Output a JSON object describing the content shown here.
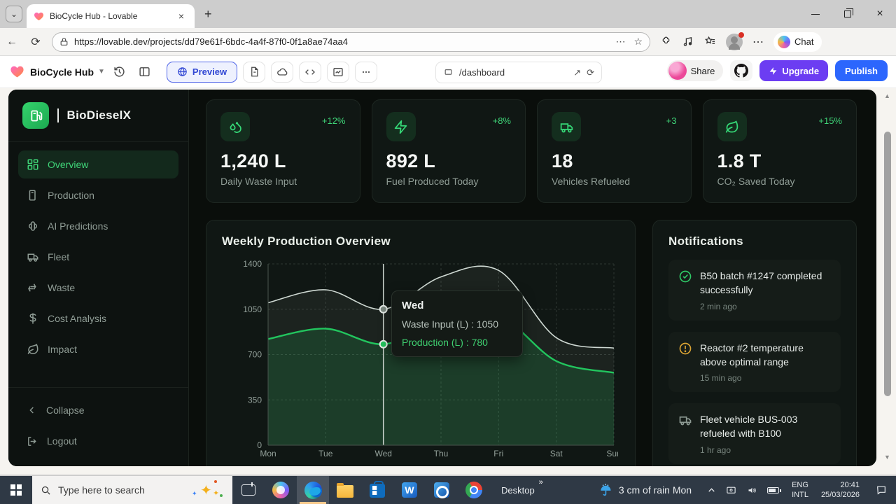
{
  "browser": {
    "tab_title": "BioCycle Hub - Lovable",
    "url": "https://lovable.dev/projects/dd79e61f-6bdc-4a4f-87f0-0f1a8ae74aa4",
    "chat_label": "Chat"
  },
  "lovable": {
    "project_name": "BioCycle Hub",
    "preview_label": "Preview",
    "path_value": "/dashboard",
    "share_label": "Share",
    "upgrade_label": "Upgrade",
    "publish_label": "Publish"
  },
  "sidebar": {
    "brand": "BioDieselX",
    "items": [
      {
        "label": "Overview",
        "icon": "dashboard-grid",
        "active": true
      },
      {
        "label": "Production",
        "icon": "fuel-pump",
        "active": false
      },
      {
        "label": "AI Predictions",
        "icon": "brain",
        "active": false
      },
      {
        "label": "Fleet",
        "icon": "truck",
        "active": false
      },
      {
        "label": "Waste",
        "icon": "recycle",
        "active": false
      },
      {
        "label": "Cost Analysis",
        "icon": "dollar",
        "active": false
      },
      {
        "label": "Impact",
        "icon": "leaf",
        "active": false
      }
    ],
    "collapse_label": "Collapse",
    "logout_label": "Logout"
  },
  "stats": [
    {
      "icon": "droplets",
      "delta": "+12%",
      "value": "1,240 L",
      "label": "Daily Waste Input"
    },
    {
      "icon": "zap",
      "delta": "+8%",
      "value": "892 L",
      "label": "Fuel Produced Today"
    },
    {
      "icon": "truck",
      "delta": "+3",
      "value": "18",
      "label": "Vehicles Refueled"
    },
    {
      "icon": "leaf",
      "delta": "+15%",
      "value": "1.8 T",
      "label": "CO₂ Saved Today"
    }
  ],
  "chart_card": {
    "title": "Weekly Production Overview"
  },
  "chart_data": {
    "type": "area",
    "x": [
      "Mon",
      "Tue",
      "Wed",
      "Thu",
      "Fri",
      "Sat",
      "Sun"
    ],
    "series": [
      {
        "name": "Waste Input (L)",
        "color": "#cfd9d3",
        "fill": "rgba(225,235,229,0.06)",
        "dot": "#7d8a82",
        "values": [
          1100,
          1200,
          1050,
          1300,
          1350,
          830,
          750
        ]
      },
      {
        "name": "Production (L)",
        "color": "#22c55e",
        "fill": "rgba(34,197,94,0.16)",
        "dot": "#22c55e",
        "values": [
          820,
          900,
          780,
          950,
          1000,
          650,
          560
        ]
      }
    ],
    "ylim": [
      0,
      1400
    ],
    "yticks": [
      0,
      350,
      700,
      1050,
      1400
    ],
    "grid": true,
    "legend": "none",
    "highlight_x": "Wed",
    "title": "Weekly Production Overview",
    "xlabel": "",
    "ylabel": ""
  },
  "tooltip": {
    "title": "Wed",
    "waste": "Waste Input (L) : 1050",
    "production": "Production (L) : 780"
  },
  "notifications": {
    "title": "Notifications",
    "items": [
      {
        "icon": "check-circle",
        "text": "B50 batch #1247 completed successfully",
        "time": "2 min ago"
      },
      {
        "icon": "alert-circle",
        "text": "Reactor #2 temperature above optimal range",
        "time": "15 min ago"
      },
      {
        "icon": "truck",
        "text": "Fleet vehicle BUS-003 refueled with B100",
        "time": "1 hr ago"
      }
    ]
  },
  "taskbar": {
    "search_placeholder": "Type here to search",
    "desktop_label": "Desktop",
    "weather": "3 cm of rain Mon",
    "lang_line1": "ENG",
    "lang_line2": "INTL",
    "time": "20:41",
    "date": "25/03/2026"
  }
}
